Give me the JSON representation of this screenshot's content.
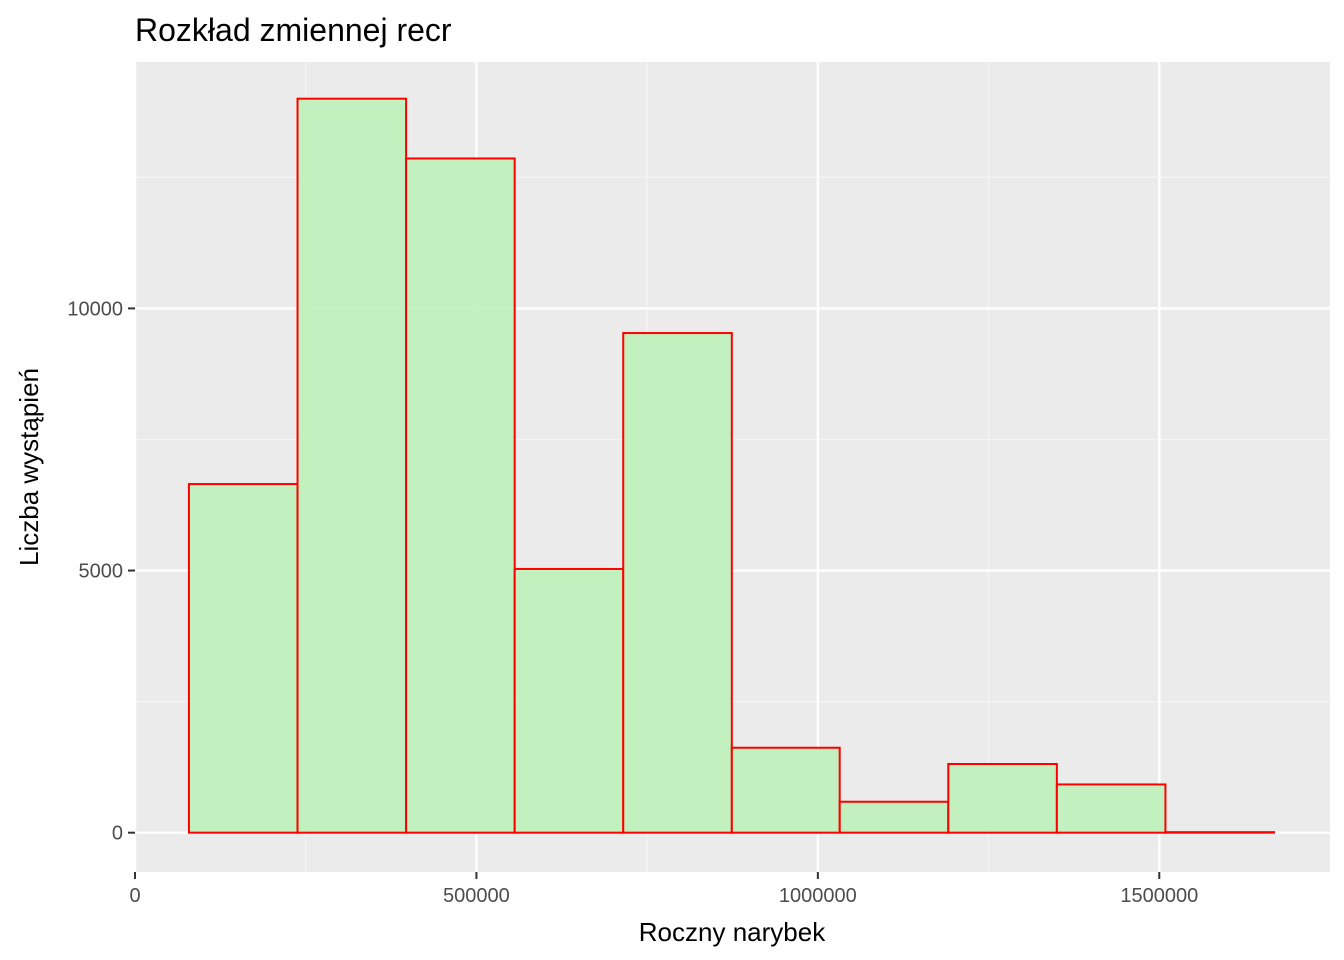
{
  "chart_data": {
    "type": "bar",
    "subtype": "histogram",
    "title": "Rozkład zmiennej recr",
    "xlabel": "Roczny narybek",
    "ylabel": "Liczba wystąpień",
    "xlim": [
      0,
      1750000
    ],
    "ylim": [
      -750,
      14700
    ],
    "x_ticks": [
      0,
      500000,
      1000000,
      1500000
    ],
    "x_tick_labels": [
      "0",
      "500000",
      "1000000",
      "1500000"
    ],
    "y_ticks": [
      0,
      5000,
      10000
    ],
    "y_tick_labels": [
      "0",
      "5000",
      "10000"
    ],
    "grid": true,
    "legend": "none",
    "bins": [
      {
        "x_start": 79000,
        "x_end": 238000,
        "count": 6650
      },
      {
        "x_start": 238000,
        "x_end": 397000,
        "count": 14000
      },
      {
        "x_start": 397000,
        "x_end": 556000,
        "count": 12860
      },
      {
        "x_start": 556000,
        "x_end": 715000,
        "count": 5030
      },
      {
        "x_start": 715000,
        "x_end": 874000,
        "count": 9530
      },
      {
        "x_start": 874000,
        "x_end": 1032000,
        "count": 1620
      },
      {
        "x_start": 1032000,
        "x_end": 1191000,
        "count": 590
      },
      {
        "x_start": 1191000,
        "x_end": 1350000,
        "count": 1310
      },
      {
        "x_start": 1350000,
        "x_end": 1509000,
        "count": 920
      },
      {
        "x_start": 1509000,
        "x_end": 1668000,
        "count": 10
      }
    ],
    "colors": {
      "bar_fill": "#c0f0bc",
      "bar_stroke": "#ff0000",
      "panel_background": "#ebebeb",
      "grid_major": "#ffffff",
      "grid_minor": "#f5f5f5",
      "tick_label": "#4d4d4d",
      "tick_mark": "#333333"
    }
  }
}
